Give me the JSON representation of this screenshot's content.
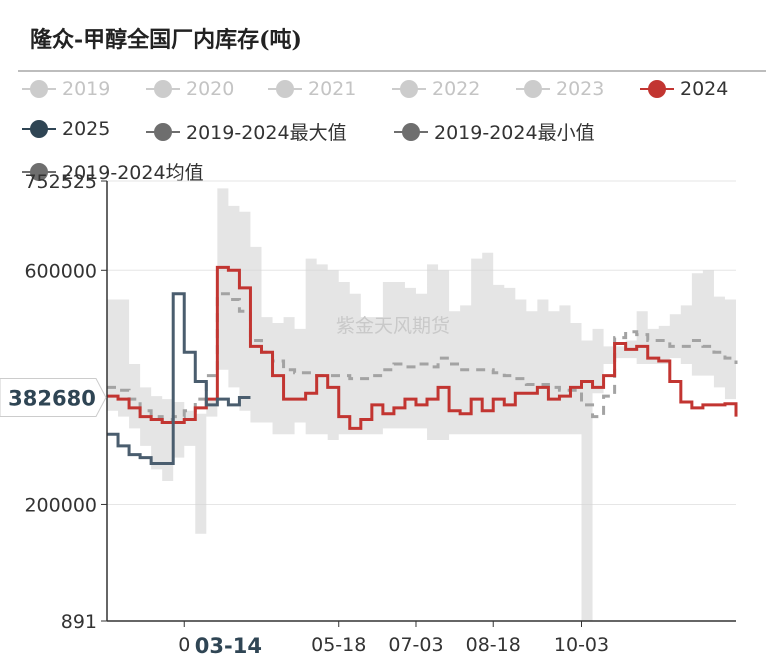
{
  "chart_data": {
    "type": "line",
    "title": "隆众-甲醇全国厂内库存(吨)",
    "ylabel": "",
    "xlabel": "",
    "ylim": [
      891,
      752525
    ],
    "y_ticks": [
      "752525",
      "600000",
      "200000",
      "891"
    ],
    "y_tick_values": [
      752525,
      600000,
      200000,
      891
    ],
    "x_ticks": [
      "0",
      "05-18",
      "07-03",
      "08-18",
      "10-03"
    ],
    "x_range": [
      0,
      57
    ],
    "x_tick_values": [
      7,
      21,
      28,
      35,
      43
    ],
    "highlight_x_label": "03-14",
    "highlight_x_value": 11,
    "highlight_y_label": "382680",
    "highlight_y_value": 382680,
    "watermark": "紫金天风期货",
    "legend": [
      {
        "name": "2019",
        "color": "#cccccc",
        "active": false
      },
      {
        "name": "2020",
        "color": "#cccccc",
        "active": false
      },
      {
        "name": "2021",
        "color": "#cccccc",
        "active": false
      },
      {
        "name": "2022",
        "color": "#cccccc",
        "active": false
      },
      {
        "name": "2023",
        "color": "#cccccc",
        "active": false
      },
      {
        "name": "2024",
        "color": "#c23531",
        "active": true
      },
      {
        "name": "2025",
        "color": "#2f4554",
        "active": true
      },
      {
        "name": "2019-2024最大值",
        "color": "#6e6e6e",
        "active": true
      },
      {
        "name": "2019-2024最小值",
        "color": "#6e6e6e",
        "active": true
      },
      {
        "name": "2019-2024均值",
        "color": "#6e6e6e",
        "active": true
      }
    ],
    "band_max": [
      550000,
      550000,
      440000,
      400000,
      385000,
      380000,
      375000,
      360000,
      355000,
      350000,
      740000,
      710000,
      700000,
      640000,
      520000,
      510000,
      520000,
      500000,
      620000,
      610000,
      600000,
      580000,
      560000,
      520000,
      520000,
      580000,
      580000,
      570000,
      560000,
      610000,
      600000,
      530000,
      540000,
      620000,
      630000,
      575000,
      570000,
      550000,
      530000,
      550000,
      530000,
      540000,
      510000,
      480000,
      500000,
      470000,
      470000,
      480000,
      530000,
      500000,
      505000,
      525000,
      540000,
      595000,
      600000,
      555000,
      550000,
      560000
    ],
    "band_min": [
      360000,
      350000,
      330000,
      300000,
      260000,
      240000,
      280000,
      300000,
      150000,
      380000,
      430000,
      400000,
      360000,
      340000,
      340000,
      320000,
      320000,
      340000,
      320000,
      320000,
      310000,
      320000,
      320000,
      320000,
      320000,
      330000,
      330000,
      330000,
      330000,
      310000,
      310000,
      320000,
      320000,
      320000,
      320000,
      320000,
      320000,
      320000,
      320000,
      320000,
      320000,
      320000,
      320000,
      0,
      390000,
      440000,
      450000,
      450000,
      440000,
      440000,
      440000,
      450000,
      440000,
      420000,
      420000,
      400000,
      380000,
      380000
    ],
    "series": [
      {
        "name": "2019-2024均值",
        "type": "dashed",
        "values": [
          400000,
          395000,
          380000,
          360000,
          350000,
          345000,
          350000,
          360000,
          380000,
          420000,
          560000,
          550000,
          530000,
          480000,
          460000,
          445000,
          430000,
          425000,
          425000,
          420000,
          420000,
          420000,
          415000,
          415000,
          420000,
          430000,
          440000,
          435000,
          440000,
          435000,
          450000,
          440000,
          430000,
          430000,
          430000,
          425000,
          420000,
          415000,
          405000,
          405000,
          400000,
          395000,
          395000,
          370000,
          350000,
          385000,
          485000,
          495000,
          490000,
          480000,
          480000,
          470000,
          470000,
          480000,
          470000,
          460000,
          450000,
          440000
        ]
      },
      {
        "name": "2024",
        "type": "solid",
        "values": [
          385000,
          380000,
          365000,
          350000,
          345000,
          340000,
          340000,
          345000,
          365000,
          380000,
          605000,
          600000,
          570000,
          470000,
          460000,
          420000,
          380000,
          380000,
          390000,
          420000,
          400000,
          350000,
          330000,
          345000,
          370000,
          355000,
          365000,
          380000,
          370000,
          380000,
          400000,
          360000,
          355000,
          380000,
          360000,
          380000,
          370000,
          390000,
          390000,
          400000,
          380000,
          385000,
          400000,
          410000,
          400000,
          420000,
          475000,
          465000,
          470000,
          450000,
          445000,
          410000,
          375000,
          365000,
          370000,
          370000,
          372000,
          350000
        ]
      },
      {
        "name": "2025",
        "type": "solid",
        "values": [
          320000,
          300000,
          285000,
          280000,
          270000,
          270000,
          560000,
          460000,
          410000,
          370000,
          380000,
          370000,
          382680
        ]
      }
    ]
  }
}
